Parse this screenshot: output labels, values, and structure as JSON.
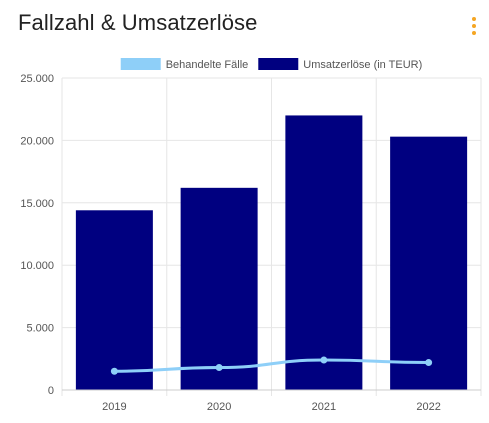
{
  "header": {
    "title": "Fallzahl & Umsatzerlöse",
    "menu_icon": "kebab-menu-icon"
  },
  "colors": {
    "bar": "#000080",
    "line": "#8ecff8",
    "menu": "#f5a623",
    "grid": "#e6e6e6"
  },
  "chart_data": {
    "type": "bar",
    "categories": [
      "2019",
      "2020",
      "2021",
      "2022"
    ],
    "series": [
      {
        "name": "Behandelte Fälle",
        "type": "line",
        "values": [
          1500,
          1800,
          2400,
          2200
        ]
      },
      {
        "name": "Umsatzerlöse (in TEUR)",
        "type": "bar",
        "values": [
          14400,
          16200,
          22000,
          20300
        ]
      }
    ],
    "yticks": [
      "0",
      "5.000",
      "10.000",
      "15.000",
      "20.000",
      "25.000"
    ],
    "ylim": [
      0,
      25000
    ],
    "grid": true,
    "legend": "top-center"
  }
}
